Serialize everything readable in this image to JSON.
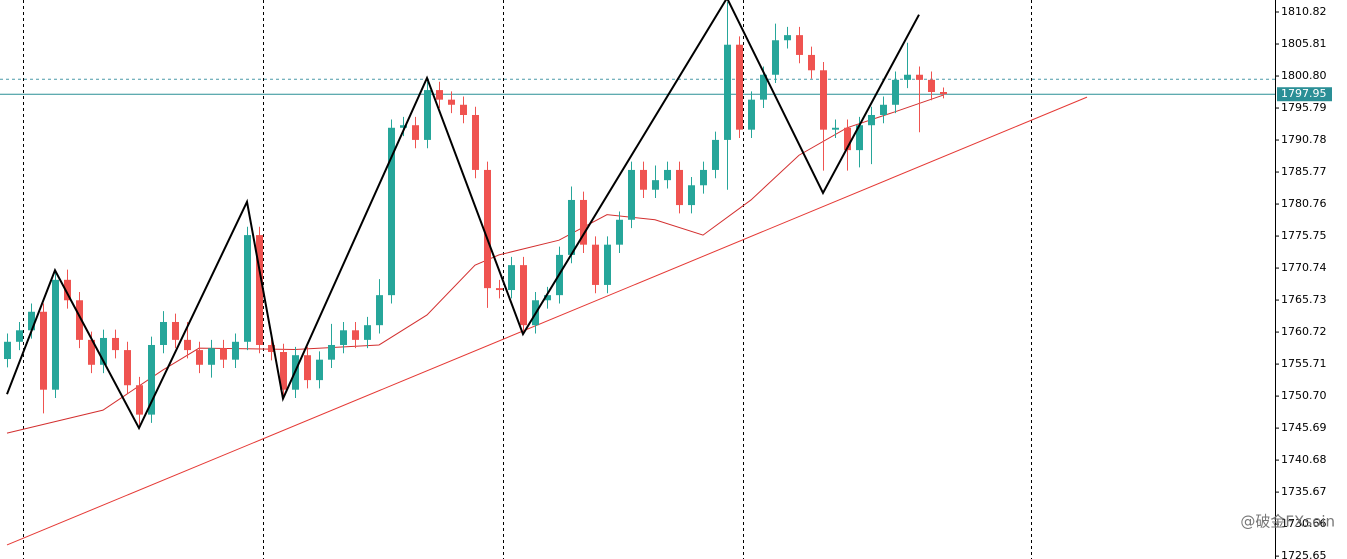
{
  "chart_data": {
    "type": "candlestick",
    "up_color": "#26a69a",
    "down_color": "#ef5350",
    "ylim": [
      1725.2,
      1812.7
    ],
    "yticks": [
      1810.82,
      1805.81,
      {
        "value": 1800.8,
        "label": "1800.80"
      },
      1795.79,
      1790.78,
      1785.77,
      1780.76,
      1775.75,
      1770.74,
      1765.73,
      1760.72,
      1755.71,
      {
        "value": 1750.7,
        "label": "1750.70"
      },
      1745.69,
      1740.68,
      1735.67,
      1730.66,
      1725.65
    ],
    "candles": [
      [
        1756.5,
        1760.5,
        1755.2,
        1759.2
      ],
      [
        1759.2,
        1762.3,
        1757.9,
        1761.0
      ],
      [
        1761.0,
        1765.2,
        1759.7,
        1763.9
      ],
      [
        1763.9,
        1765.2,
        1748.0,
        1751.7
      ],
      [
        1751.7,
        1770.2,
        1750.4,
        1768.9
      ],
      [
        1768.9,
        1770.5,
        1764.4,
        1765.7
      ],
      [
        1765.7,
        1767.0,
        1758.2,
        1759.5
      ],
      [
        1759.5,
        1760.8,
        1754.3,
        1755.6
      ],
      [
        1755.6,
        1761.1,
        1754.3,
        1759.8
      ],
      [
        1759.8,
        1761.1,
        1756.6,
        1757.9
      ],
      [
        1757.9,
        1759.2,
        1751.1,
        1752.4
      ],
      [
        1752.4,
        1753.7,
        1746.2,
        1747.8
      ],
      [
        1747.8,
        1760.0,
        1746.5,
        1758.7
      ],
      [
        1758.7,
        1764.0,
        1757.4,
        1762.3
      ],
      [
        1762.3,
        1763.6,
        1758.2,
        1759.5
      ],
      [
        1759.5,
        1762.3,
        1756.6,
        1757.9
      ],
      [
        1757.9,
        1759.2,
        1754.3,
        1755.6
      ],
      [
        1755.6,
        1759.5,
        1753.6,
        1758.2
      ],
      [
        1758.2,
        1759.5,
        1755.1,
        1756.4
      ],
      [
        1756.4,
        1760.5,
        1755.1,
        1759.2
      ],
      [
        1759.2,
        1777.2,
        1757.9,
        1775.9
      ],
      [
        1775.9,
        1777.2,
        1757.4,
        1758.7
      ],
      [
        1758.7,
        1760.0,
        1756.3,
        1757.6
      ],
      [
        1757.6,
        1758.9,
        1750.4,
        1751.7
      ],
      [
        1751.7,
        1758.4,
        1750.4,
        1757.1
      ],
      [
        1757.1,
        1758.4,
        1751.9,
        1753.2
      ],
      [
        1753.2,
        1757.7,
        1751.9,
        1756.4
      ],
      [
        1756.4,
        1762.0,
        1755.1,
        1758.7
      ],
      [
        1758.7,
        1762.3,
        1757.4,
        1761.0
      ],
      [
        1761.0,
        1762.3,
        1758.2,
        1759.5
      ],
      [
        1759.5,
        1763.1,
        1758.2,
        1761.8
      ],
      [
        1761.8,
        1769.0,
        1760.5,
        1766.5
      ],
      [
        1766.5,
        1794.0,
        1765.2,
        1792.7
      ],
      [
        1792.7,
        1794.4,
        1791.4,
        1793.1
      ],
      [
        1793.1,
        1794.4,
        1789.5,
        1790.8
      ],
      [
        1790.8,
        1799.9,
        1789.5,
        1798.6
      ],
      [
        1798.6,
        1799.9,
        1795.8,
        1797.1
      ],
      [
        1797.1,
        1798.4,
        1795.0,
        1796.3
      ],
      [
        1796.3,
        1797.6,
        1793.4,
        1794.7
      ],
      [
        1794.7,
        1796.0,
        1784.8,
        1786.1
      ],
      [
        1786.1,
        1787.4,
        1764.5,
        1767.6
      ],
      [
        1767.6,
        1768.9,
        1766.0,
        1767.3
      ],
      [
        1767.3,
        1772.5,
        1766.0,
        1771.2
      ],
      [
        1771.2,
        1772.5,
        1760.5,
        1761.8
      ],
      [
        1761.8,
        1767.0,
        1760.5,
        1765.7
      ],
      [
        1765.7,
        1767.8,
        1764.4,
        1766.5
      ],
      [
        1766.5,
        1774.1,
        1765.2,
        1772.8
      ],
      [
        1772.8,
        1783.5,
        1771.5,
        1781.4
      ],
      [
        1781.4,
        1782.7,
        1773.1,
        1774.4
      ],
      [
        1774.4,
        1775.7,
        1766.8,
        1768.1
      ],
      [
        1768.1,
        1775.7,
        1766.8,
        1774.4
      ],
      [
        1774.4,
        1779.6,
        1773.1,
        1778.3
      ],
      [
        1778.3,
        1787.4,
        1777.0,
        1786.1
      ],
      [
        1786.1,
        1787.4,
        1781.7,
        1783.0
      ],
      [
        1783.0,
        1786.8,
        1781.7,
        1784.5
      ],
      [
        1784.5,
        1787.4,
        1783.2,
        1786.1
      ],
      [
        1786.1,
        1787.4,
        1779.3,
        1780.6
      ],
      [
        1780.6,
        1785.0,
        1779.3,
        1783.7
      ],
      [
        1783.7,
        1787.4,
        1782.4,
        1786.1
      ],
      [
        1786.1,
        1792.1,
        1784.8,
        1790.8
      ],
      [
        1790.8,
        1812.4,
        1783.0,
        1805.7
      ],
      [
        1805.7,
        1807.0,
        1791.1,
        1792.4
      ],
      [
        1792.4,
        1798.4,
        1791.1,
        1797.1
      ],
      [
        1797.1,
        1802.3,
        1795.8,
        1801.0
      ],
      [
        1801.0,
        1809.0,
        1799.7,
        1806.4
      ],
      [
        1806.4,
        1808.5,
        1805.1,
        1807.2
      ],
      [
        1807.2,
        1808.5,
        1802.8,
        1804.1
      ],
      [
        1804.1,
        1805.4,
        1800.4,
        1801.7
      ],
      [
        1801.7,
        1803.0,
        1786.0,
        1792.4
      ],
      [
        1792.4,
        1794.0,
        1791.1,
        1792.7
      ],
      [
        1792.7,
        1794.0,
        1786.0,
        1789.2
      ],
      [
        1789.2,
        1794.4,
        1786.5,
        1793.1
      ],
      [
        1793.1,
        1796.0,
        1787.0,
        1794.7
      ],
      [
        1794.7,
        1797.6,
        1793.4,
        1796.3
      ],
      [
        1796.3,
        1801.5,
        1795.0,
        1800.2
      ],
      [
        1800.2,
        1806.0,
        1798.9,
        1801.0
      ],
      [
        1801.0,
        1802.3,
        1792.0,
        1800.2
      ],
      [
        1800.2,
        1801.5,
        1797.0,
        1798.3
      ],
      [
        1798.3,
        1799.0,
        1797.3,
        1797.95
      ]
    ],
    "ma": {
      "color": "#d32f2f",
      "x": [
        0,
        8,
        13,
        16,
        24,
        31,
        35,
        39,
        41,
        46,
        50,
        54,
        58,
        62,
        66,
        70,
        74,
        78
      ],
      "values": [
        1744.9,
        1748.5,
        1754.8,
        1758.2,
        1758.0,
        1758.7,
        1763.4,
        1771.2,
        1772.8,
        1775.1,
        1779.1,
        1778.3,
        1775.9,
        1781.4,
        1788.4,
        1792.7,
        1795.2,
        1797.8
      ]
    },
    "zigzag": {
      "color": "#000000",
      "x": [
        0,
        4,
        11,
        20,
        23,
        35,
        43,
        60,
        68,
        76
      ],
      "values": [
        1751.0,
        1770.4,
        1745.7,
        1781.1,
        1750.3,
        1800.5,
        1760.4,
        1813.0,
        1782.5,
        1810.4
      ]
    },
    "trendline": {
      "color": "#e53935",
      "x": [
        0,
        90
      ],
      "values": [
        1727.4,
        1797.5
      ]
    },
    "dashed_level": {
      "color": "#4a9aa8",
      "value": 1800.3
    },
    "last_price": {
      "color": "#2a8f96",
      "value": 1797.95
    },
    "watermark": "@破金FXsoin"
  }
}
